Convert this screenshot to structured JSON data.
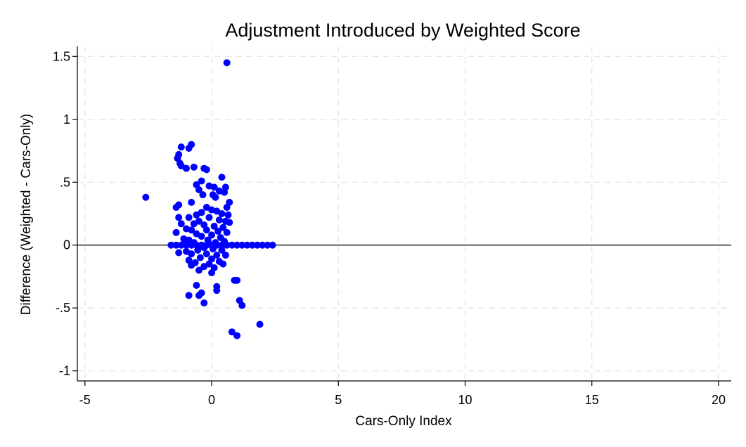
{
  "chart_data": {
    "type": "scatter",
    "title": "Adjustment Introduced by Weighted Score",
    "xlabel": "Cars-Only Index",
    "ylabel": "Difference (Weighted - Cars-Only)",
    "xlim": [
      -5.3,
      20.5
    ],
    "ylim": [
      -1.08,
      1.58
    ],
    "xticks": [
      -5,
      0,
      5,
      10,
      15,
      20
    ],
    "xtick_labels": [
      "-5",
      "0",
      "5",
      "10",
      "15",
      "20"
    ],
    "yticks": [
      1.5,
      1,
      0.5,
      0,
      -0.5,
      -1
    ],
    "ytick_labels": [
      "1.5",
      "1",
      ".5",
      "0",
      "-.5",
      "-1"
    ],
    "grid": true,
    "reference_line_y": 0,
    "series": [
      {
        "color": "#0000ff",
        "points": [
          [
            0.6,
            1.45
          ],
          [
            -2.6,
            0.38
          ],
          [
            -1.6,
            0.0
          ],
          [
            -1.2,
            0.78
          ],
          [
            -0.8,
            0.8
          ],
          [
            -0.9,
            0.77
          ],
          [
            -1.3,
            0.72
          ],
          [
            -1.35,
            0.69
          ],
          [
            -1.25,
            0.65
          ],
          [
            -1.2,
            0.63
          ],
          [
            -1.0,
            0.61
          ],
          [
            -0.7,
            0.62
          ],
          [
            -0.3,
            0.61
          ],
          [
            -0.2,
            0.6
          ],
          [
            0.4,
            0.54
          ],
          [
            -0.4,
            0.51
          ],
          [
            -0.6,
            0.48
          ],
          [
            -0.1,
            0.47
          ],
          [
            0.1,
            0.46
          ],
          [
            0.55,
            0.46
          ],
          [
            -0.5,
            0.44
          ],
          [
            0.3,
            0.43
          ],
          [
            0.5,
            0.42
          ],
          [
            -0.35,
            0.4
          ],
          [
            0.05,
            0.4
          ],
          [
            0.15,
            0.38
          ],
          [
            -0.8,
            0.34
          ],
          [
            -1.4,
            0.3
          ],
          [
            -1.3,
            0.32
          ],
          [
            0.7,
            0.34
          ],
          [
            0.6,
            0.3
          ],
          [
            -0.2,
            0.3
          ],
          [
            0.0,
            0.28
          ],
          [
            0.2,
            0.27
          ],
          [
            0.4,
            0.25
          ],
          [
            0.65,
            0.24
          ],
          [
            -0.4,
            0.26
          ],
          [
            -0.6,
            0.24
          ],
          [
            -0.9,
            0.22
          ],
          [
            -1.3,
            0.22
          ],
          [
            -0.1,
            0.22
          ],
          [
            0.3,
            0.2
          ],
          [
            0.55,
            0.19
          ],
          [
            0.7,
            0.18
          ],
          [
            -0.5,
            0.19
          ],
          [
            -0.7,
            0.17
          ],
          [
            -1.2,
            0.17
          ],
          [
            -0.3,
            0.16
          ],
          [
            0.1,
            0.15
          ],
          [
            0.45,
            0.14
          ],
          [
            -1.0,
            0.13
          ],
          [
            -0.8,
            0.12
          ],
          [
            -0.2,
            0.12
          ],
          [
            0.25,
            0.11
          ],
          [
            0.6,
            0.1
          ],
          [
            -1.4,
            0.1
          ],
          [
            -0.6,
            0.09
          ],
          [
            0.0,
            0.08
          ],
          [
            -0.4,
            0.07
          ],
          [
            0.35,
            0.06
          ],
          [
            -1.1,
            0.05
          ],
          [
            -0.9,
            0.04
          ],
          [
            -0.15,
            0.04
          ],
          [
            0.5,
            0.03
          ],
          [
            -0.7,
            0.02
          ],
          [
            0.15,
            0.02
          ],
          [
            -0.3,
            -0.02
          ],
          [
            0.05,
            -0.03
          ],
          [
            -0.55,
            -0.04
          ],
          [
            0.4,
            -0.04
          ],
          [
            -1.0,
            -0.05
          ],
          [
            -0.8,
            -0.07
          ],
          [
            -0.2,
            -0.07
          ],
          [
            0.2,
            -0.08
          ],
          [
            -1.3,
            -0.06
          ],
          [
            0.55,
            -0.08
          ],
          [
            -0.45,
            -0.1
          ],
          [
            0.0,
            -0.11
          ],
          [
            -0.9,
            -0.12
          ],
          [
            -0.65,
            -0.14
          ],
          [
            0.3,
            -0.13
          ],
          [
            -0.1,
            -0.15
          ],
          [
            0.45,
            -0.15
          ],
          [
            -0.3,
            -0.17
          ],
          [
            -0.8,
            -0.16
          ],
          [
            0.1,
            -0.18
          ],
          [
            -0.5,
            -0.2
          ],
          [
            0.0,
            -0.22
          ],
          [
            0.9,
            -0.28
          ],
          [
            1.0,
            -0.28
          ],
          [
            0.2,
            -0.33
          ],
          [
            0.2,
            -0.36
          ],
          [
            -0.6,
            -0.32
          ],
          [
            -0.4,
            -0.38
          ],
          [
            -0.5,
            -0.4
          ],
          [
            -0.9,
            -0.4
          ],
          [
            -0.3,
            -0.46
          ],
          [
            1.1,
            -0.44
          ],
          [
            1.2,
            -0.48
          ],
          [
            1.9,
            -0.63
          ],
          [
            0.8,
            -0.69
          ],
          [
            1.0,
            -0.72
          ],
          [
            -1.4,
            0.0
          ],
          [
            -1.2,
            0.0
          ],
          [
            -1.0,
            0.0
          ],
          [
            -0.8,
            0.0
          ],
          [
            -0.6,
            0.0
          ],
          [
            -0.4,
            0.0
          ],
          [
            -0.2,
            0.0
          ],
          [
            0.0,
            0.0
          ],
          [
            0.2,
            0.0
          ],
          [
            0.4,
            0.0
          ],
          [
            0.6,
            0.0
          ],
          [
            0.8,
            0.0
          ],
          [
            1.0,
            0.0
          ],
          [
            1.2,
            0.0
          ],
          [
            1.4,
            0.0
          ],
          [
            1.6,
            0.0
          ],
          [
            1.8,
            0.0
          ],
          [
            2.0,
            0.0
          ],
          [
            2.2,
            0.0
          ],
          [
            2.4,
            0.0
          ]
        ]
      }
    ]
  }
}
